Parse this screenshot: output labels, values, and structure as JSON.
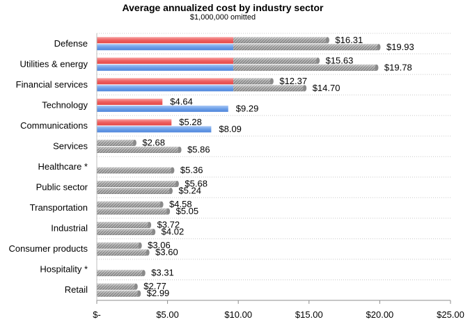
{
  "chart_data": {
    "type": "bar",
    "orientation": "horizontal",
    "title": "Average annualized cost by industry sector",
    "subtitle": "$1,000,000 omitted",
    "xlabel": "",
    "ylabel": "",
    "xlim": [
      0,
      25
    ],
    "x_ticks": [
      0,
      5,
      10,
      15,
      20,
      25
    ],
    "x_tick_labels": [
      "$-",
      "$5.00",
      "$10.00",
      "$15.00",
      "$20.00",
      "$25.00"
    ],
    "grid": "horizontal dotted lines between categories",
    "legend": "none",
    "categories": [
      "Defense",
      "Utilities & energy",
      "Financial services",
      "Technology",
      "Communications",
      "Services",
      "Healthcare *",
      "Public sector",
      "Transportation",
      "Industrial",
      "Consumer products",
      "Hospitality *",
      "Retail"
    ],
    "series": [
      {
        "color": "#ee6f6f",
        "values": [
          16.31,
          15.63,
          12.37,
          4.64,
          5.28,
          2.68,
          null,
          5.68,
          4.58,
          3.72,
          3.06,
          null,
          2.77
        ],
        "labels": [
          "$16.31",
          "$15.63",
          "$12.37",
          "$4.64",
          "$5.28",
          "$2.68",
          null,
          "$5.68",
          "$4.58",
          "$3.72",
          "$3.06",
          null,
          "$2.77"
        ]
      },
      {
        "color": "#6fa3ea",
        "values": [
          19.93,
          19.78,
          14.7,
          9.29,
          8.09,
          5.86,
          5.36,
          5.24,
          5.05,
          4.02,
          3.6,
          3.31,
          2.99
        ],
        "labels": [
          "$19.93",
          "$19.78",
          "$14.70",
          "$9.29",
          "$8.09",
          "$5.86",
          "$5.36",
          "$5.24",
          "$5.05",
          "$4.02",
          "$3.60",
          "$3.31",
          "$2.99"
        ]
      }
    ],
    "colored_segment_limit": 9.65,
    "gray_color": "#9a9a9a"
  }
}
